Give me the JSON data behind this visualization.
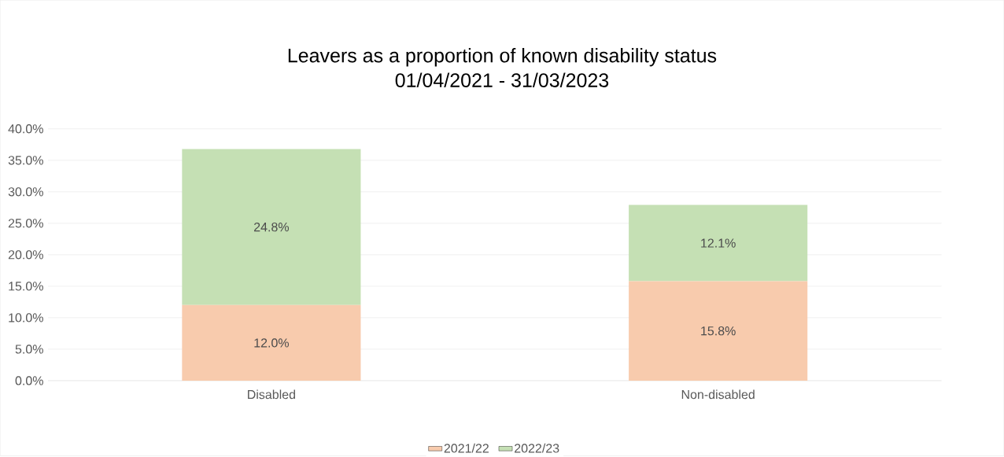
{
  "chart_data": {
    "type": "bar",
    "stacked": true,
    "title": "Leavers as a proportion of known disability status",
    "subtitle": "01/04/2021 - 31/03/2023",
    "categories": [
      "Disabled",
      "Non-disabled"
    ],
    "series": [
      {
        "name": "2021/22",
        "color": "#f8cbad",
        "values": [
          12.0,
          15.8
        ],
        "value_labels": [
          "12.0%",
          "15.8%"
        ]
      },
      {
        "name": "2022/23",
        "color": "#c5e0b4",
        "values": [
          24.8,
          12.1
        ],
        "value_labels": [
          "24.8%",
          "12.1%"
        ]
      }
    ],
    "ylim": [
      0,
      40
    ],
    "yticks": [
      {
        "value": 0,
        "label": "0.0%"
      },
      {
        "value": 5,
        "label": "5.0%"
      },
      {
        "value": 10,
        "label": "10.0%"
      },
      {
        "value": 15,
        "label": "15.0%"
      },
      {
        "value": 20,
        "label": "20.0%"
      },
      {
        "value": 25,
        "label": "25.0%"
      },
      {
        "value": 30,
        "label": "30.0%"
      },
      {
        "value": 35,
        "label": "35.0%"
      },
      {
        "value": 40,
        "label": "40.0%"
      }
    ],
    "grid": "y",
    "legend": "bottom"
  }
}
